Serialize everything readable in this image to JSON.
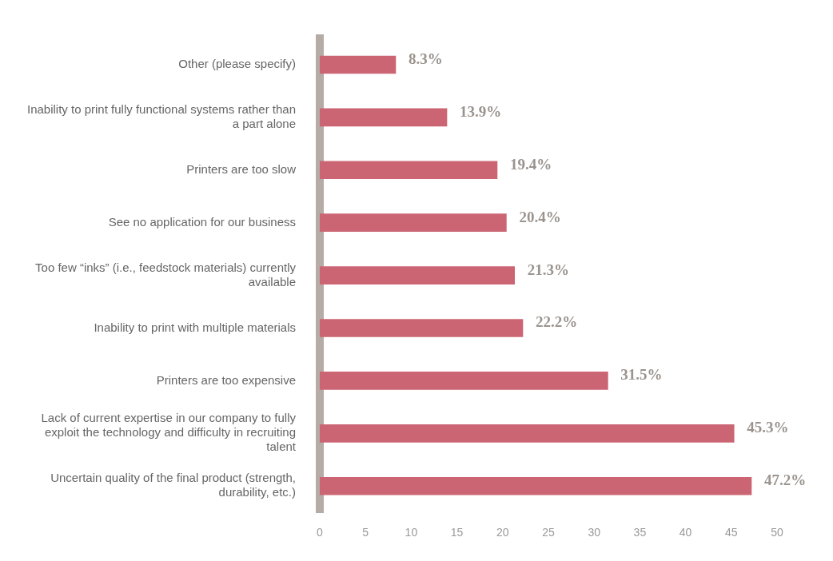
{
  "chart_data": {
    "type": "bar",
    "orientation": "horizontal",
    "categories": [
      "Other (please specify)",
      "Inability to print fully functional systems rather than a part alone",
      "Printers are too slow",
      "See no application for our business",
      "Too few “inks” (i.e., feedstock materials) currently available",
      "Inability to print with multiple materials",
      "Printers are too expensive",
      "Lack of current expertise in our company to fully exploit the technology and difficulty in recruiting talent",
      "Uncertain quality of the final product (strength, durability, etc.)"
    ],
    "values": [
      8.3,
      13.9,
      19.4,
      20.4,
      21.3,
      22.2,
      31.5,
      45.3,
      47.2
    ],
    "value_labels": [
      "8.3%",
      "13.9%",
      "19.4%",
      "20.4%",
      "21.3%",
      "22.2%",
      "31.5%",
      "45.3%",
      "47.2%"
    ],
    "color": "#cc6573",
    "xlim": [
      0,
      50
    ],
    "xticks": [
      0,
      5,
      10,
      15,
      20,
      25,
      30,
      35,
      40,
      45,
      50
    ],
    "grid": false,
    "legend": false
  }
}
